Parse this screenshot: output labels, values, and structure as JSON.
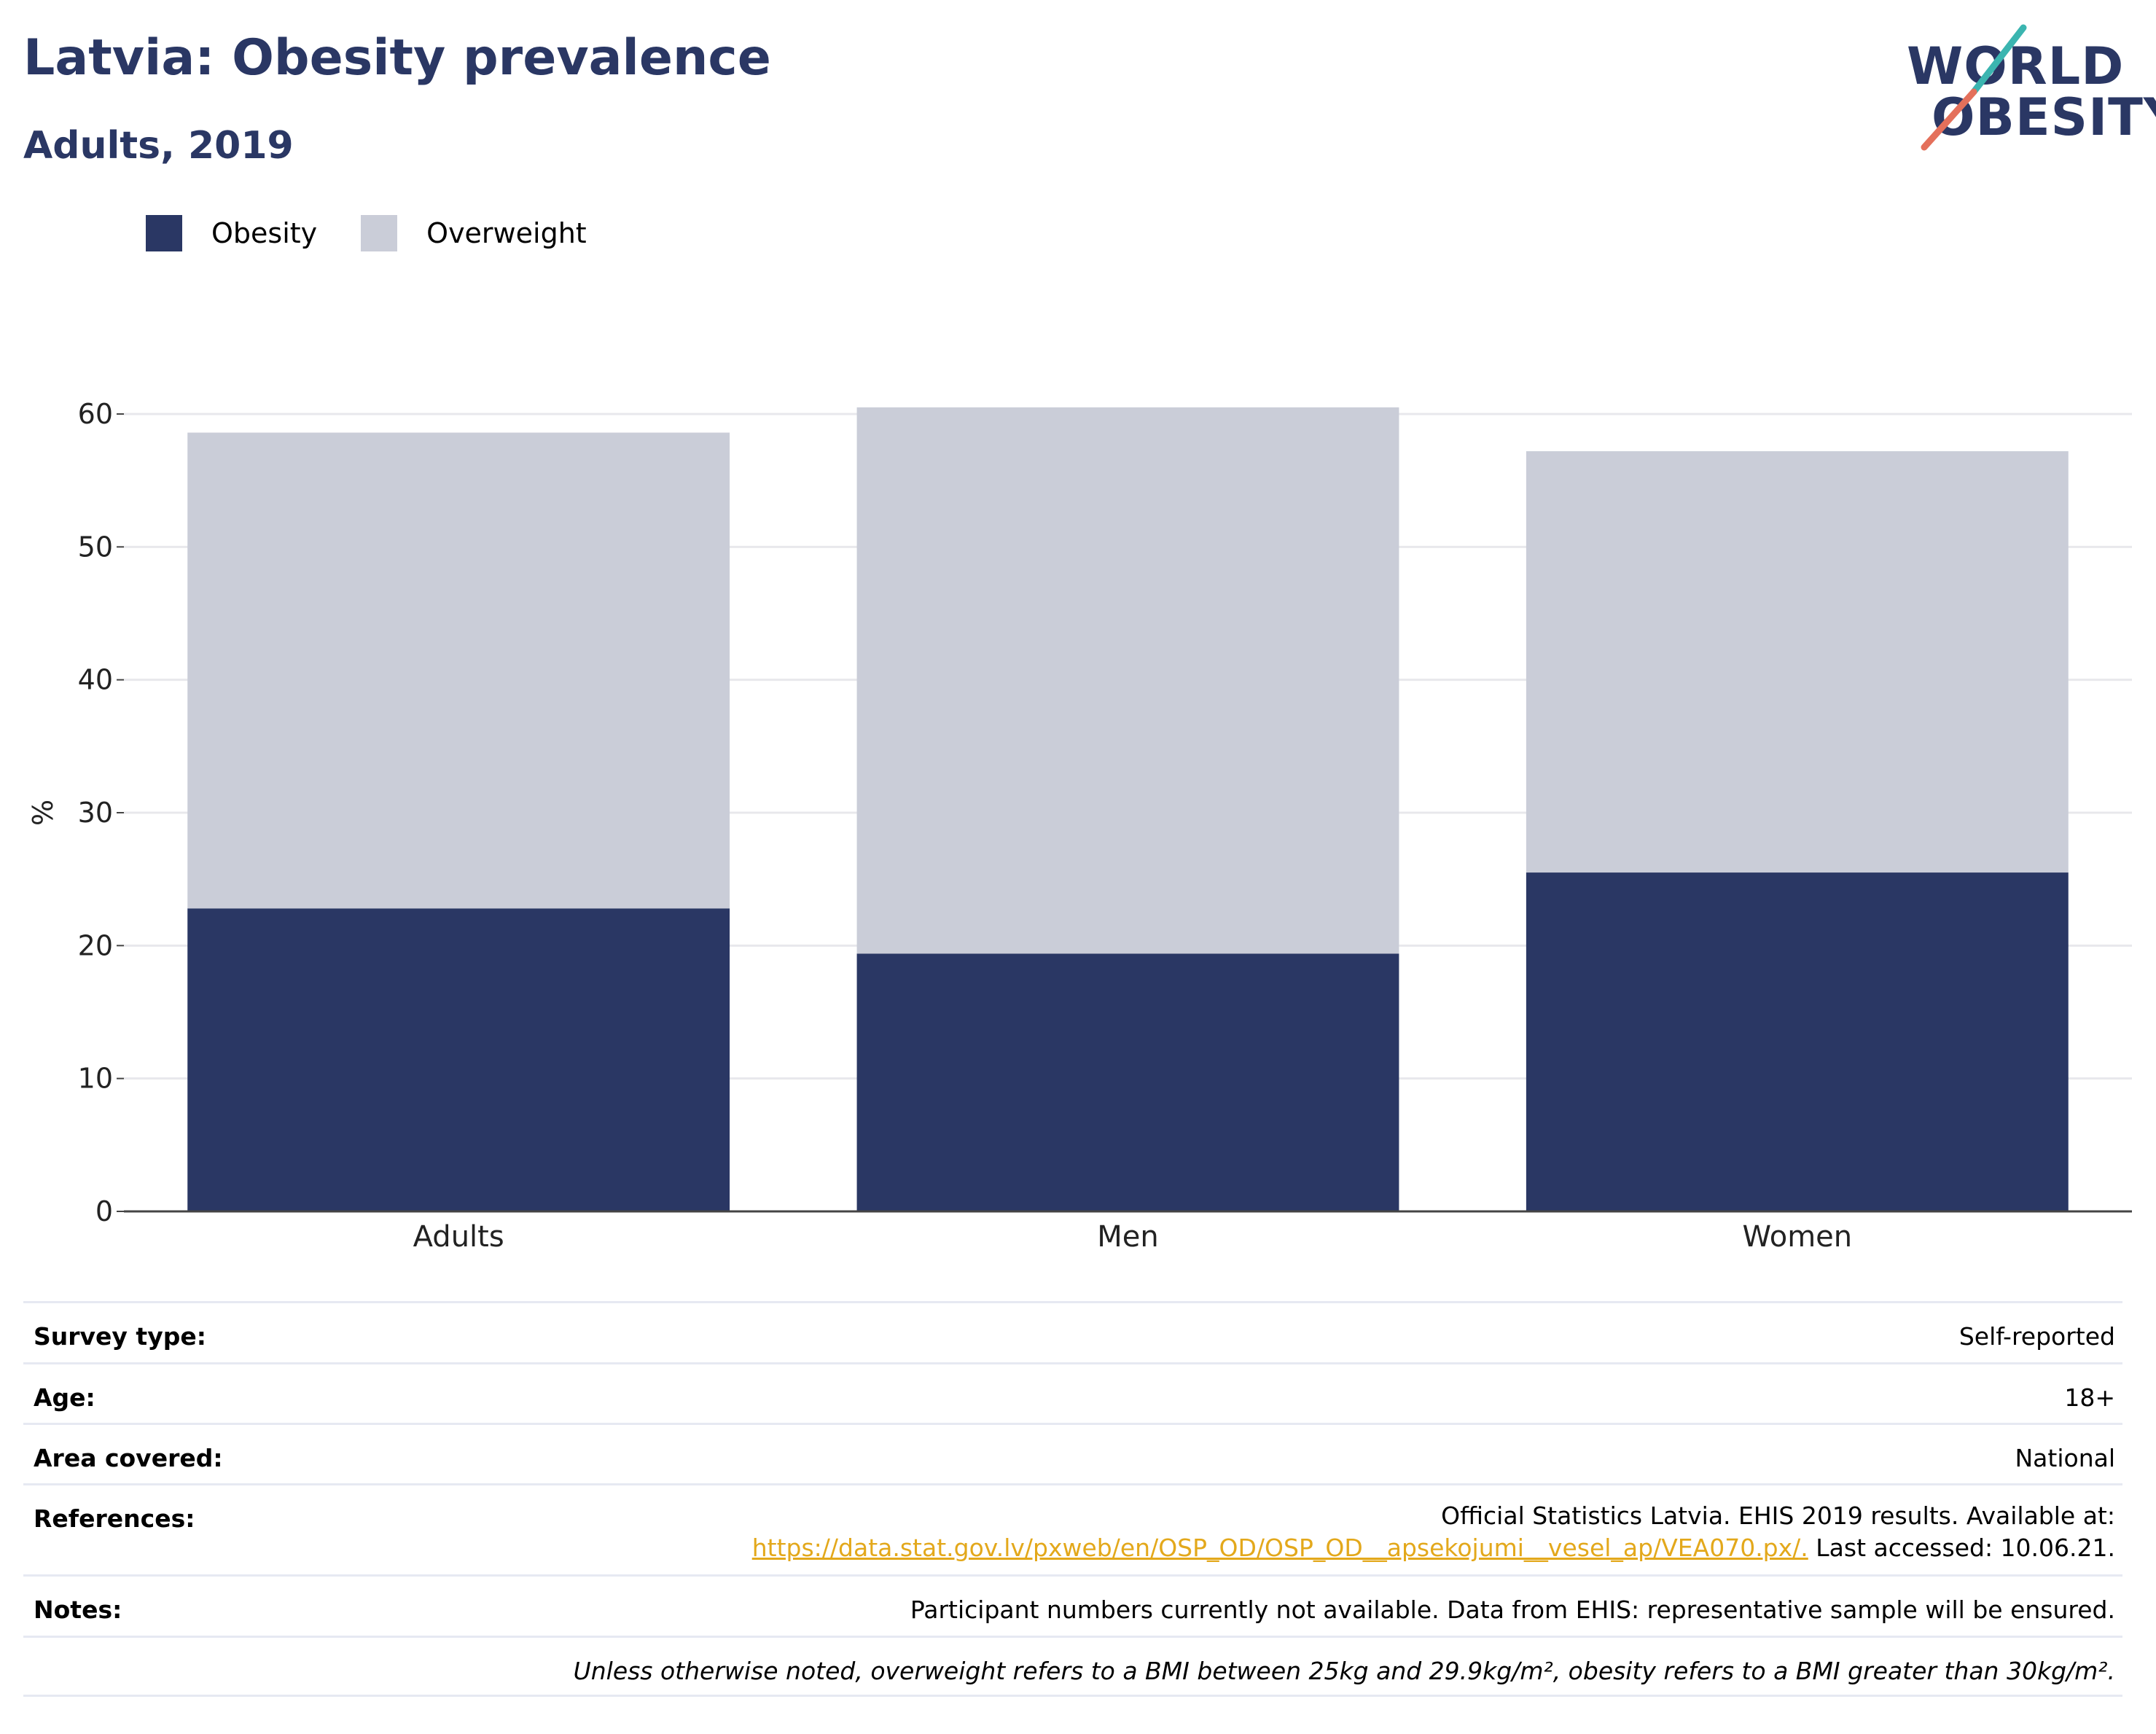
{
  "title": "Latvia: Obesity prevalence",
  "subtitle": "Adults, 2019",
  "logo": {
    "line1": "WORLD",
    "line2": "OBESITY"
  },
  "colors": {
    "obesity": "#2a3764",
    "overweight": "#cacdd8",
    "accent_teal": "#3bb5b0",
    "accent_red": "#e4705b",
    "link": "#e3a81b"
  },
  "legend": {
    "obesity": "Obesity",
    "overweight": "Overweight"
  },
  "chart_data": {
    "type": "bar",
    "stacked": true,
    "categories": [
      "Adults",
      "Men",
      "Women"
    ],
    "series": [
      {
        "name": "Obesity",
        "values": [
          22.8,
          19.4,
          25.5
        ]
      },
      {
        "name": "Overweight",
        "values": [
          35.8,
          41.1,
          31.7
        ]
      }
    ],
    "ylabel": "%",
    "ylim": [
      0,
      60
    ],
    "yticks": [
      0,
      10,
      20,
      30,
      40,
      50,
      60
    ],
    "grid": true,
    "legend_position": "top-left"
  },
  "info": {
    "survey_label": "Survey type:",
    "survey_value": "Self-reported",
    "age_label": "Age:",
    "age_value": "18+",
    "area_label": "Area covered:",
    "area_value": "National",
    "ref_label": "References:",
    "ref_line1": "Official Statistics Latvia. EHIS 2019 results. Available at:",
    "ref_link": "https://data.stat.gov.lv/pxweb/en/OSP_OD/OSP_OD__apsekojumi__vesel_ap/VEA070.px/.",
    "ref_tail": " Last accessed: 10.06.21.",
    "notes_label": "Notes:",
    "notes_value": "Participant numbers currently not available. Data from EHIS: representative sample will be ensured.",
    "footnote": "Unless otherwise noted, overweight refers to a BMI between 25kg and 29.9kg/m², obesity refers to a BMI greater than 30kg/m²."
  }
}
